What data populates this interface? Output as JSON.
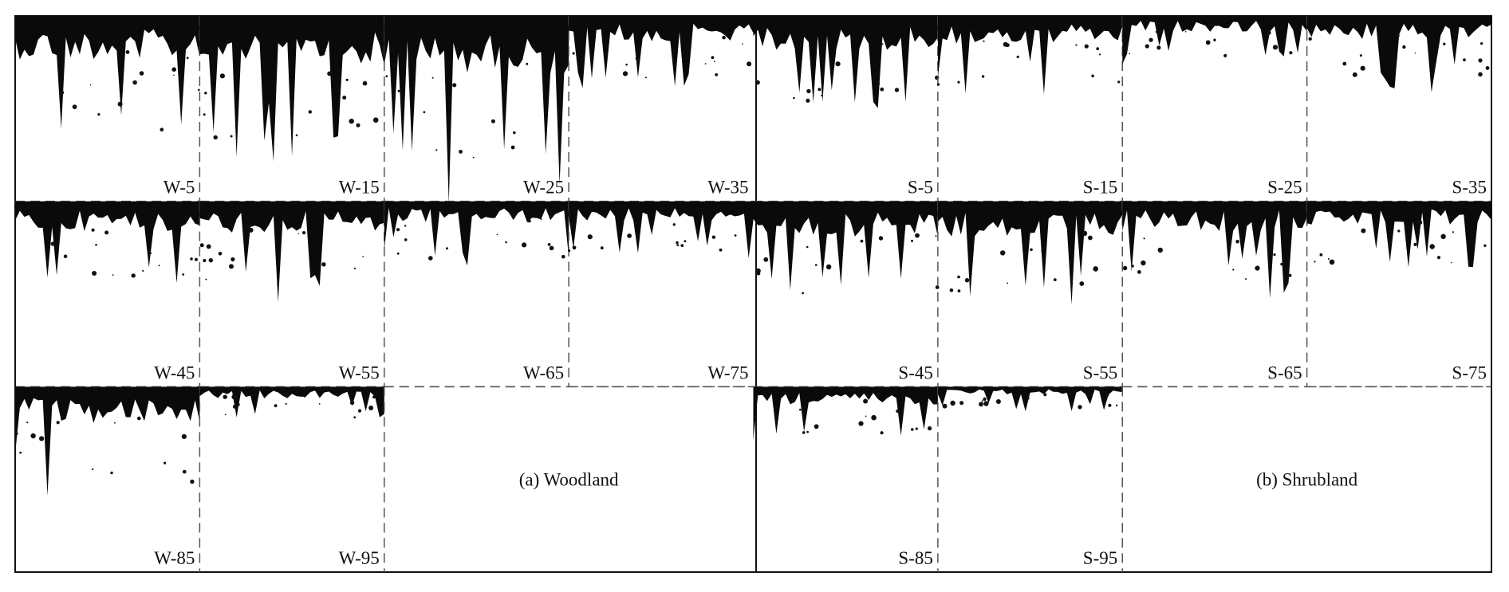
{
  "woodland": {
    "caption": "(a) Woodland",
    "images": [
      "W-5",
      "W-15",
      "W-25",
      "W-35",
      "W-45",
      "W-55",
      "W-65",
      "W-75",
      "W-85",
      "W-95"
    ]
  },
  "shrubland": {
    "caption": "(b)  Shrubland",
    "images": [
      "S-5",
      "S-15",
      "S-25",
      "S-35",
      "S-45",
      "S-55",
      "S-65",
      "S-75",
      "S-85",
      "S-95"
    ]
  }
}
